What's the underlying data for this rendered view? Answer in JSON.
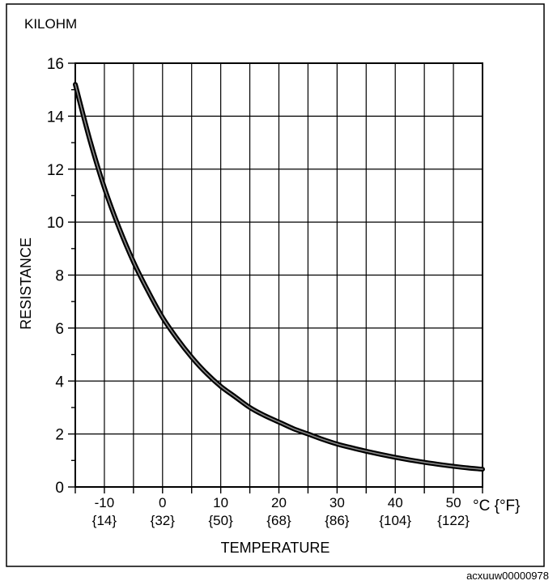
{
  "chart_data": {
    "type": "line",
    "unit_label": "KILOHM",
    "ylabel": "RESISTANCE",
    "xlabel": "TEMPERATURE",
    "xunit_label": "°C {°F}",
    "figure_id": "acxuuw00000978",
    "ylim": [
      0,
      16
    ],
    "xlim": [
      -15,
      55
    ],
    "grid": true,
    "y_ticks": [
      0,
      2,
      4,
      6,
      8,
      10,
      12,
      14,
      16
    ],
    "y_tick_labels": [
      "0",
      "2",
      "4",
      "6",
      "8",
      "10",
      "12",
      "14",
      "16"
    ],
    "x_ticks": [
      -10,
      0,
      10,
      20,
      30,
      40,
      50
    ],
    "x_tick_labels_c": [
      "-10",
      "0",
      "10",
      "20",
      "30",
      "40",
      "50"
    ],
    "x_tick_labels_f": [
      "{14}",
      "{32}",
      "{50}",
      "{68}",
      "{86}",
      "{104}",
      "{122}"
    ],
    "series": [
      {
        "x": [
          -15,
          -12.5,
          -10,
          -7.5,
          -5,
          -2.5,
          0,
          2.5,
          5,
          7.5,
          10,
          12.5,
          15,
          17.5,
          20,
          22.5,
          25,
          27.5,
          30,
          32.5,
          35,
          37.5,
          40,
          42.5,
          45,
          47.5,
          50,
          52.5,
          55
        ],
        "y": [
          15.2,
          13.1,
          11.3,
          9.8,
          8.5,
          7.4,
          6.4,
          5.6,
          4.9,
          4.3,
          3.8,
          3.4,
          3.0,
          2.7,
          2.45,
          2.2,
          2.0,
          1.8,
          1.62,
          1.48,
          1.35,
          1.23,
          1.12,
          1.02,
          0.93,
          0.85,
          0.78,
          0.72,
          0.67
        ]
      }
    ]
  }
}
